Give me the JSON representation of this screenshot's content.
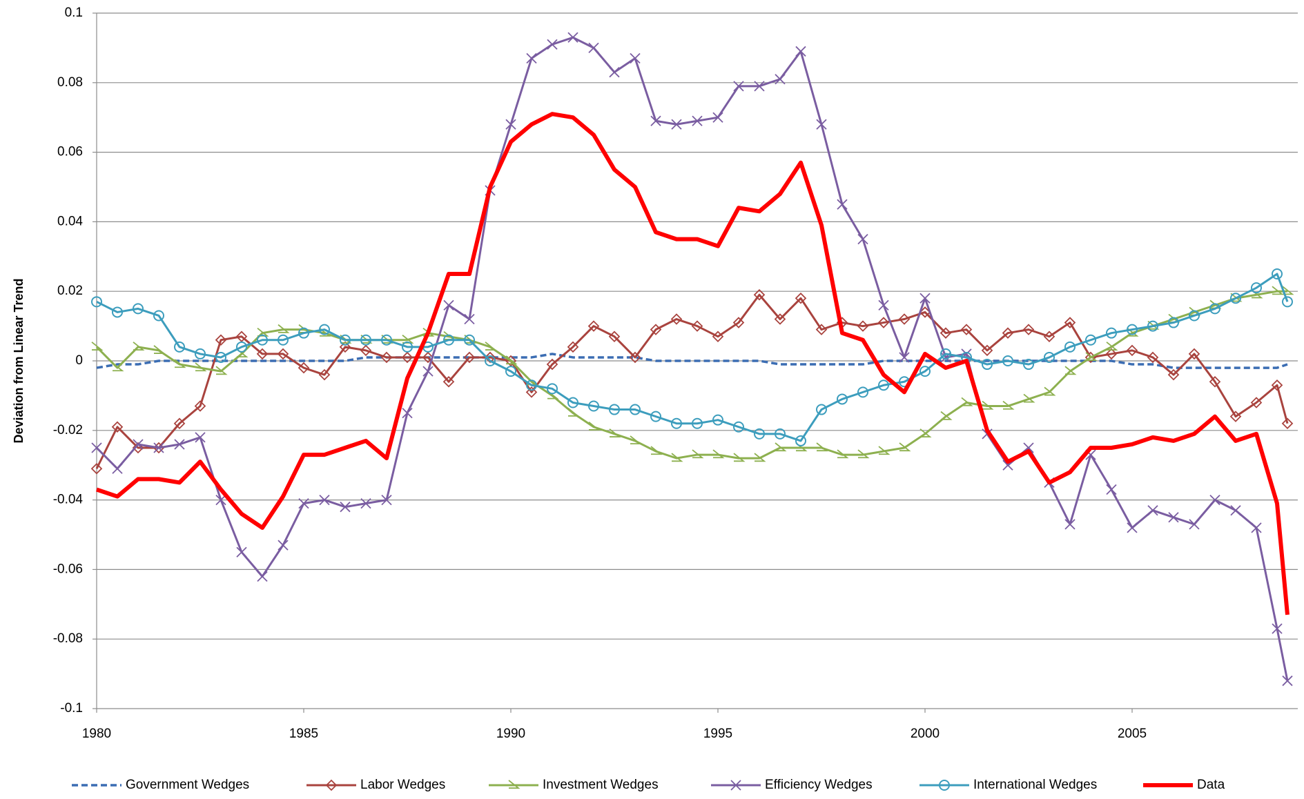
{
  "chart_data": {
    "type": "line",
    "y_label": "Deviation from Linear Trend",
    "xlim": [
      1980,
      2009
    ],
    "xticks": [
      1980,
      1985,
      1990,
      1995,
      2000,
      2005
    ],
    "ylim": [
      -0.1,
      0.1
    ],
    "yticks": [
      -0.1,
      -0.08,
      -0.06,
      -0.04,
      -0.02,
      0,
      0.02,
      0.04,
      0.06,
      0.08,
      0.1
    ],
    "grid": true,
    "legend": "bottom",
    "x": [
      1980,
      1980.5,
      1981,
      1981.5,
      1982,
      1982.5,
      1983,
      1983.5,
      1984,
      1984.5,
      1985,
      1985.5,
      1986,
      1986.5,
      1987,
      1987.5,
      1988,
      1988.5,
      1989,
      1989.5,
      1990,
      1990.5,
      1991,
      1991.5,
      1992,
      1992.5,
      1993,
      1993.5,
      1994,
      1994.5,
      1995,
      1995.5,
      1996,
      1996.5,
      1997,
      1997.5,
      1998,
      1998.5,
      1999,
      1999.5,
      2000,
      2000.5,
      2001,
      2001.5,
      2002,
      2002.5,
      2003,
      2003.5,
      2004,
      2004.5,
      2005,
      2005.5,
      2006,
      2006.5,
      2007,
      2007.5,
      2008,
      2008.5,
      2008.75
    ],
    "series": [
      {
        "name": "Government Wedges",
        "color": "#3b6db3",
        "marker": "none",
        "dashed": true,
        "line_width": 3.5,
        "values": [
          -0.002,
          -0.001,
          -0.001,
          0,
          0,
          0,
          0,
          0,
          0,
          0,
          0,
          0,
          0,
          0.001,
          0.001,
          0.001,
          0.001,
          0.001,
          0.001,
          0.001,
          0.001,
          0.001,
          0.002,
          0.001,
          0.001,
          0.001,
          0.001,
          0,
          0,
          0,
          0,
          0,
          0,
          -0.001,
          -0.001,
          -0.001,
          -0.001,
          -0.001,
          0,
          0,
          0,
          0,
          0,
          0,
          0,
          0,
          0,
          0,
          0,
          0,
          -0.001,
          -0.001,
          -0.002,
          -0.002,
          -0.002,
          -0.002,
          -0.002,
          -0.002,
          -0.001
        ]
      },
      {
        "name": "Labor Wedges",
        "color": "#a9433e",
        "marker": "diamond",
        "dashed": false,
        "line_width": 3,
        "values": [
          -0.031,
          -0.019,
          -0.025,
          -0.025,
          -0.018,
          -0.013,
          0.006,
          0.007,
          0.002,
          0.002,
          -0.002,
          -0.004,
          0.004,
          0.003,
          0.001,
          0.001,
          0.001,
          -0.006,
          0.001,
          0.001,
          0,
          -0.009,
          -0.001,
          0.004,
          0.01,
          0.007,
          0.001,
          0.009,
          0.012,
          0.01,
          0.007,
          0.011,
          0.019,
          0.012,
          0.018,
          0.009,
          0.011,
          0.01,
          0.011,
          0.012,
          0.014,
          0.008,
          0.009,
          0.003,
          0.008,
          0.009,
          0.007,
          0.011,
          0.001,
          0.002,
          0.003,
          0.001,
          -0.004,
          0.002,
          -0.006,
          -0.016,
          -0.012,
          -0.007,
          -0.018
        ]
      },
      {
        "name": "Investment Wedges",
        "color": "#8db04f",
        "marker": "triangle",
        "dashed": false,
        "line_width": 3,
        "values": [
          0.004,
          -0.002,
          0.004,
          0.003,
          -0.001,
          -0.002,
          -0.003,
          0.002,
          0.008,
          0.009,
          0.009,
          0.008,
          0.006,
          0.006,
          0.006,
          0.006,
          0.008,
          0.007,
          0.006,
          0.004,
          0,
          -0.006,
          -0.01,
          -0.015,
          -0.019,
          -0.021,
          -0.023,
          -0.026,
          -0.028,
          -0.027,
          -0.027,
          -0.028,
          -0.028,
          -0.025,
          -0.025,
          -0.025,
          -0.027,
          -0.027,
          -0.026,
          -0.025,
          -0.021,
          -0.016,
          -0.012,
          -0.013,
          -0.013,
          -0.011,
          -0.009,
          -0.003,
          0.001,
          0.004,
          0.008,
          0.01,
          0.012,
          0.014,
          0.016,
          0.018,
          0.019,
          0.02,
          0.02
        ]
      },
      {
        "name": "Efficiency Wedges",
        "color": "#7a5da1",
        "marker": "cross",
        "dashed": false,
        "line_width": 3,
        "values": [
          -0.025,
          -0.031,
          -0.024,
          -0.025,
          -0.024,
          -0.022,
          -0.04,
          -0.055,
          -0.062,
          -0.053,
          -0.041,
          -0.04,
          -0.042,
          -0.041,
          -0.04,
          -0.015,
          -0.003,
          0.016,
          0.012,
          0.049,
          0.068,
          0.087,
          0.091,
          0.093,
          0.09,
          0.083,
          0.087,
          0.069,
          0.068,
          0.069,
          0.07,
          0.079,
          0.079,
          0.081,
          0.089,
          0.068,
          0.045,
          0.035,
          0.016,
          0.001,
          0.018,
          0.001,
          0.002,
          -0.021,
          -0.03,
          -0.025,
          -0.035,
          -0.047,
          -0.027,
          -0.037,
          -0.048,
          -0.043,
          -0.045,
          -0.047,
          -0.04,
          -0.043,
          -0.048,
          -0.077,
          -0.092
        ]
      },
      {
        "name": "International Wedges",
        "color": "#3c9dbd",
        "marker": "circle",
        "dashed": false,
        "line_width": 3,
        "values": [
          0.017,
          0.014,
          0.015,
          0.013,
          0.004,
          0.002,
          0.001,
          0.004,
          0.006,
          0.006,
          0.008,
          0.009,
          0.006,
          0.006,
          0.006,
          0.004,
          0.004,
          0.006,
          0.006,
          0,
          -0.003,
          -0.007,
          -0.008,
          -0.012,
          -0.013,
          -0.014,
          -0.014,
          -0.016,
          -0.018,
          -0.018,
          -0.017,
          -0.019,
          -0.021,
          -0.021,
          -0.023,
          -0.014,
          -0.011,
          -0.009,
          -0.007,
          -0.006,
          -0.003,
          0.002,
          0.001,
          -0.001,
          0,
          -0.001,
          0.001,
          0.004,
          0.006,
          0.008,
          0.009,
          0.01,
          0.011,
          0.013,
          0.015,
          0.018,
          0.021,
          0.025,
          0.017
        ]
      },
      {
        "name": "Data",
        "color": "#ff0000",
        "marker": "none",
        "dashed": false,
        "line_width": 6,
        "values": [
          -0.037,
          -0.039,
          -0.034,
          -0.034,
          -0.035,
          -0.029,
          -0.037,
          -0.044,
          -0.048,
          -0.039,
          -0.027,
          -0.027,
          -0.025,
          -0.023,
          -0.028,
          -0.005,
          0.008,
          0.025,
          0.025,
          0.05,
          0.063,
          0.068,
          0.071,
          0.07,
          0.065,
          0.055,
          0.05,
          0.037,
          0.035,
          0.035,
          0.033,
          0.044,
          0.043,
          0.048,
          0.057,
          0.039,
          0.008,
          0.006,
          -0.004,
          -0.009,
          0.002,
          -0.002,
          0,
          -0.02,
          -0.029,
          -0.026,
          -0.035,
          -0.032,
          -0.025,
          -0.025,
          -0.024,
          -0.022,
          -0.023,
          -0.021,
          -0.016,
          -0.023,
          -0.021,
          -0.041,
          -0.073
        ]
      }
    ]
  }
}
